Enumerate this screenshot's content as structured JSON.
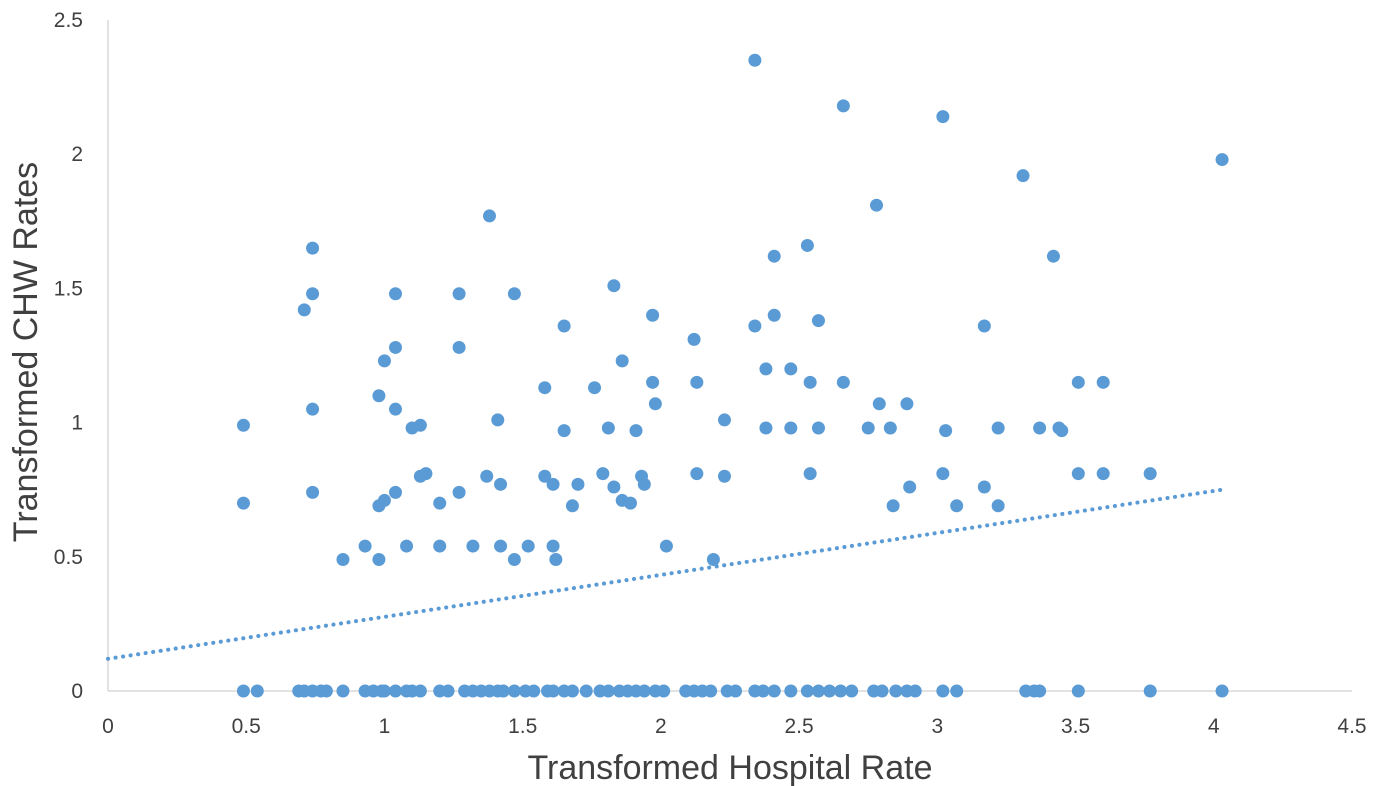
{
  "chart_data": {
    "type": "scatter",
    "title": "",
    "xlabel": "Transformed Hospital Rate",
    "ylabel": "Transformed CHW Rates",
    "xlim": [
      0,
      4.5
    ],
    "ylim": [
      0,
      2.5
    ],
    "x_ticks": [
      "0",
      "0.5",
      "1",
      "1.5",
      "2",
      "2.5",
      "3",
      "3.5",
      "4",
      "4.5"
    ],
    "y_ticks": [
      "0",
      "0.5",
      "1",
      "1.5",
      "2",
      "2.5"
    ],
    "grid": false,
    "legend": "none",
    "colors": {
      "marker": "#5b9bd5",
      "trendline": "#5b9bd5",
      "axis": "#d9d9d9"
    },
    "trendline": {
      "type": "linear",
      "style": "dotted",
      "x": [
        0,
        4.03
      ],
      "y": [
        0.12,
        0.75
      ]
    },
    "points": [
      [
        2.34,
        2.35
      ],
      [
        2.66,
        2.18
      ],
      [
        3.02,
        2.14
      ],
      [
        4.03,
        1.98
      ],
      [
        3.31,
        1.92
      ],
      [
        2.78,
        1.81
      ],
      [
        1.38,
        1.77
      ],
      [
        0.74,
        1.65
      ],
      [
        2.53,
        1.66
      ],
      [
        2.41,
        1.62
      ],
      [
        3.42,
        1.62
      ],
      [
        1.83,
        1.51
      ],
      [
        0.74,
        1.48
      ],
      [
        1.04,
        1.48
      ],
      [
        1.27,
        1.48
      ],
      [
        1.47,
        1.48
      ],
      [
        0.71,
        1.42
      ],
      [
        1.97,
        1.4
      ],
      [
        2.41,
        1.4
      ],
      [
        2.57,
        1.38
      ],
      [
        1.65,
        1.36
      ],
      [
        2.34,
        1.36
      ],
      [
        3.17,
        1.36
      ],
      [
        2.12,
        1.31
      ],
      [
        1.04,
        1.28
      ],
      [
        1.27,
        1.28
      ],
      [
        1.0,
        1.23
      ],
      [
        1.86,
        1.23
      ],
      [
        2.38,
        1.2
      ],
      [
        2.47,
        1.2
      ],
      [
        2.13,
        1.15
      ],
      [
        1.97,
        1.15
      ],
      [
        2.54,
        1.15
      ],
      [
        2.66,
        1.15
      ],
      [
        3.51,
        1.15
      ],
      [
        3.6,
        1.15
      ],
      [
        1.58,
        1.13
      ],
      [
        1.76,
        1.13
      ],
      [
        0.98,
        1.1
      ],
      [
        0.74,
        1.05
      ],
      [
        1.04,
        1.05
      ],
      [
        1.98,
        1.07
      ],
      [
        2.79,
        1.07
      ],
      [
        2.89,
        1.07
      ],
      [
        1.13,
        0.99
      ],
      [
        1.41,
        1.01
      ],
      [
        2.23,
        1.01
      ],
      [
        0.49,
        0.99
      ],
      [
        1.1,
        0.98
      ],
      [
        1.81,
        0.98
      ],
      [
        2.38,
        0.98
      ],
      [
        2.47,
        0.98
      ],
      [
        2.57,
        0.98
      ],
      [
        2.75,
        0.98
      ],
      [
        2.83,
        0.98
      ],
      [
        3.22,
        0.98
      ],
      [
        3.37,
        0.98
      ],
      [
        3.44,
        0.98
      ],
      [
        1.65,
        0.97
      ],
      [
        1.91,
        0.97
      ],
      [
        3.03,
        0.97
      ],
      [
        3.45,
        0.97
      ],
      [
        1.13,
        0.8
      ],
      [
        1.15,
        0.81
      ],
      [
        1.37,
        0.8
      ],
      [
        1.58,
        0.8
      ],
      [
        1.79,
        0.81
      ],
      [
        1.93,
        0.8
      ],
      [
        2.13,
        0.81
      ],
      [
        2.23,
        0.8
      ],
      [
        2.54,
        0.81
      ],
      [
        3.02,
        0.81
      ],
      [
        3.51,
        0.81
      ],
      [
        3.6,
        0.81
      ],
      [
        3.77,
        0.81
      ],
      [
        0.74,
        0.74
      ],
      [
        1.04,
        0.74
      ],
      [
        1.27,
        0.74
      ],
      [
        1.42,
        0.77
      ],
      [
        1.61,
        0.77
      ],
      [
        1.7,
        0.77
      ],
      [
        1.94,
        0.77
      ],
      [
        1.83,
        0.76
      ],
      [
        2.9,
        0.76
      ],
      [
        3.17,
        0.76
      ],
      [
        0.49,
        0.7
      ],
      [
        0.98,
        0.69
      ],
      [
        1.0,
        0.71
      ],
      [
        1.2,
        0.7
      ],
      [
        1.68,
        0.69
      ],
      [
        1.86,
        0.71
      ],
      [
        1.89,
        0.7
      ],
      [
        2.84,
        0.69
      ],
      [
        3.07,
        0.69
      ],
      [
        3.22,
        0.69
      ],
      [
        0.93,
        0.54
      ],
      [
        1.08,
        0.54
      ],
      [
        1.2,
        0.54
      ],
      [
        1.32,
        0.54
      ],
      [
        1.42,
        0.54
      ],
      [
        1.52,
        0.54
      ],
      [
        1.61,
        0.54
      ],
      [
        2.02,
        0.54
      ],
      [
        0.85,
        0.49
      ],
      [
        0.98,
        0.49
      ],
      [
        1.47,
        0.49
      ],
      [
        1.62,
        0.49
      ],
      [
        2.19,
        0.49
      ],
      [
        0.49,
        0
      ],
      [
        0.54,
        0
      ],
      [
        0.69,
        0
      ],
      [
        0.71,
        0
      ],
      [
        0.74,
        0
      ],
      [
        0.77,
        0
      ],
      [
        0.79,
        0
      ],
      [
        0.85,
        0
      ],
      [
        0.93,
        0
      ],
      [
        0.96,
        0
      ],
      [
        0.99,
        0
      ],
      [
        1.0,
        0
      ],
      [
        1.04,
        0
      ],
      [
        1.08,
        0
      ],
      [
        1.1,
        0
      ],
      [
        1.13,
        0
      ],
      [
        1.2,
        0
      ],
      [
        1.23,
        0
      ],
      [
        1.29,
        0
      ],
      [
        1.32,
        0
      ],
      [
        1.35,
        0
      ],
      [
        1.38,
        0
      ],
      [
        1.41,
        0
      ],
      [
        1.43,
        0
      ],
      [
        1.47,
        0
      ],
      [
        1.51,
        0
      ],
      [
        1.54,
        0
      ],
      [
        1.59,
        0
      ],
      [
        1.61,
        0
      ],
      [
        1.65,
        0
      ],
      [
        1.68,
        0
      ],
      [
        1.73,
        0
      ],
      [
        1.78,
        0
      ],
      [
        1.81,
        0
      ],
      [
        1.85,
        0
      ],
      [
        1.88,
        0
      ],
      [
        1.91,
        0
      ],
      [
        1.94,
        0
      ],
      [
        1.98,
        0
      ],
      [
        2.01,
        0
      ],
      [
        2.09,
        0
      ],
      [
        2.12,
        0
      ],
      [
        2.15,
        0
      ],
      [
        2.18,
        0
      ],
      [
        2.24,
        0
      ],
      [
        2.27,
        0
      ],
      [
        2.34,
        0
      ],
      [
        2.37,
        0
      ],
      [
        2.41,
        0
      ],
      [
        2.47,
        0
      ],
      [
        2.53,
        0
      ],
      [
        2.57,
        0
      ],
      [
        2.61,
        0
      ],
      [
        2.65,
        0
      ],
      [
        2.69,
        0
      ],
      [
        2.77,
        0
      ],
      [
        2.8,
        0
      ],
      [
        2.85,
        0
      ],
      [
        2.89,
        0
      ],
      [
        2.92,
        0
      ],
      [
        3.02,
        0
      ],
      [
        3.07,
        0
      ],
      [
        3.32,
        0
      ],
      [
        3.35,
        0
      ],
      [
        3.37,
        0
      ],
      [
        3.51,
        0
      ],
      [
        3.77,
        0
      ],
      [
        4.03,
        0
      ]
    ]
  }
}
